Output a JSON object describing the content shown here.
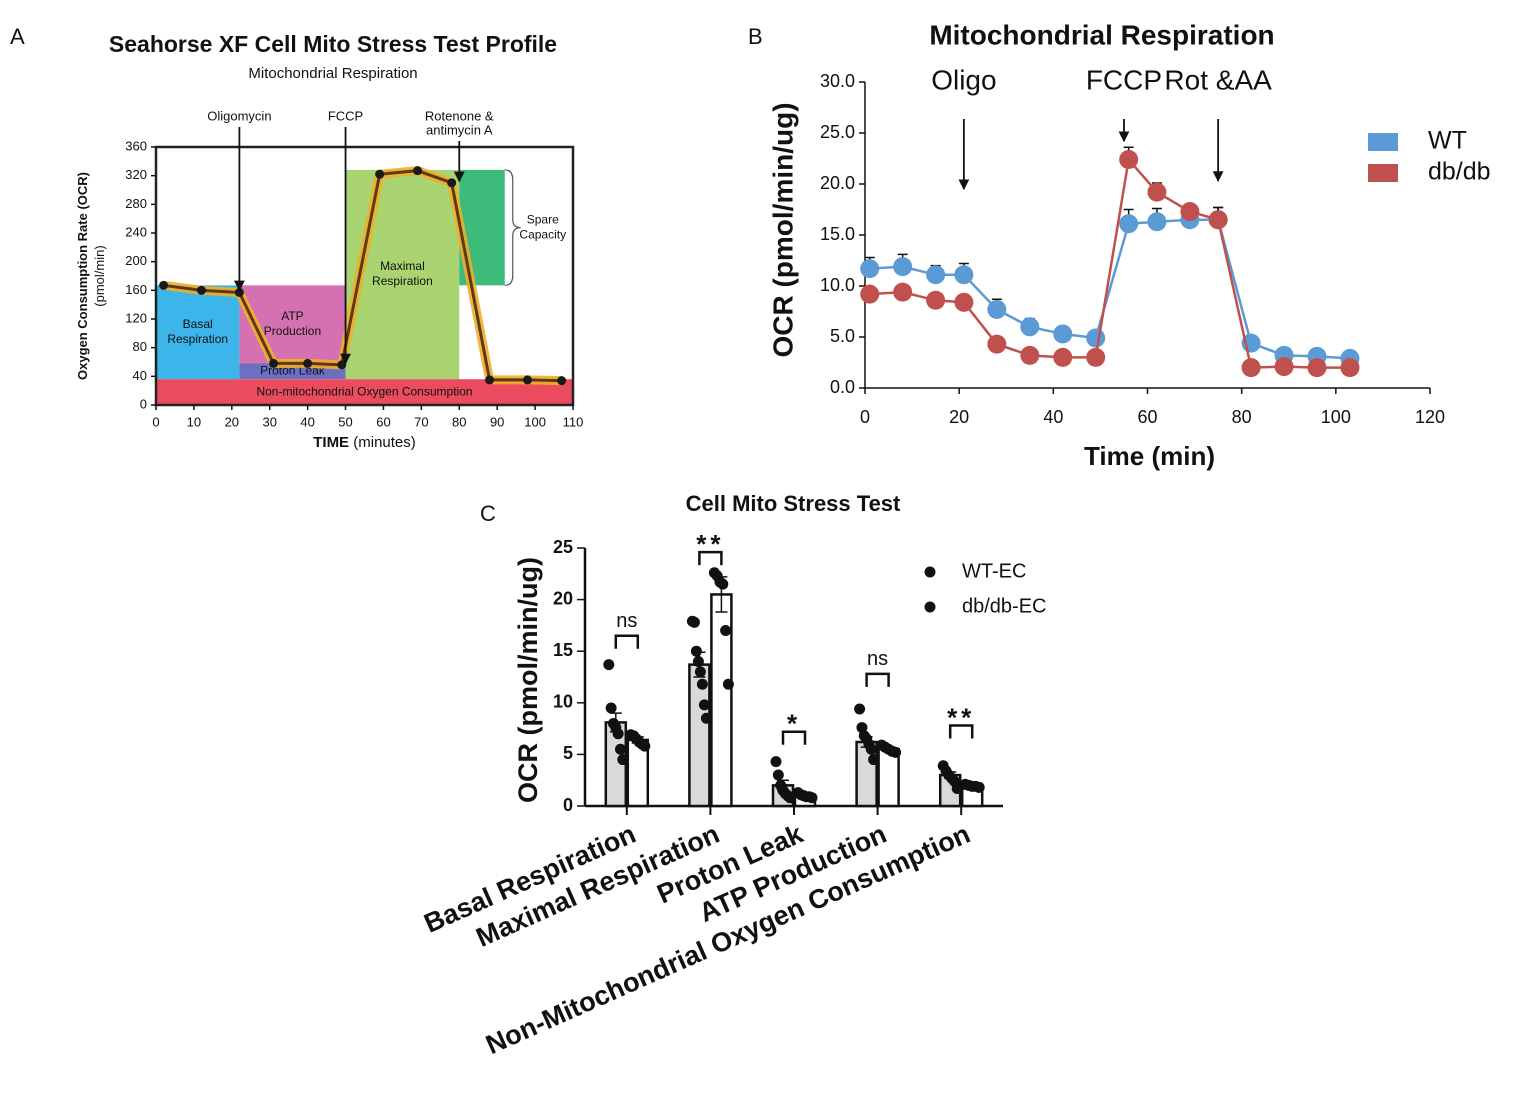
{
  "chart_data": [
    {
      "type": "line",
      "panel_label": "A",
      "title": "Seahorse XF Cell Mito Stress Test Profile",
      "subtitle": "Mitochondrial Respiration",
      "y_label": [
        "Oxygen Consumption Rate (OCR)",
        "(pmol/min)"
      ],
      "x_label": "TIME",
      "x_label_unit": "(minutes)",
      "x": [
        2,
        12,
        22,
        31,
        40,
        49,
        59,
        69,
        78,
        88,
        98,
        107
      ],
      "values": [
        167,
        160,
        157,
        58,
        58,
        56,
        322,
        327,
        310,
        35,
        35,
        34
      ],
      "color": "#5a3b12",
      "halo_color": "#f2ad2c",
      "marker_color": "#1a1a1a",
      "xlim": [
        0,
        110
      ],
      "xticks": [
        0,
        10,
        20,
        30,
        40,
        50,
        60,
        70,
        80,
        90,
        100,
        110
      ],
      "ylim": [
        0,
        360
      ],
      "yticks": [
        0,
        40,
        80,
        120,
        160,
        200,
        240,
        280,
        320,
        360
      ],
      "regions": [
        {
          "label": [
            "Basal",
            "Respiration"
          ],
          "x0": 0,
          "x1": 22,
          "y0": 36,
          "y1": 167,
          "color": "#3bb5ea"
        },
        {
          "label": [
            "ATP",
            "Production"
          ],
          "x0": 22,
          "x1": 50,
          "y0": 58,
          "y1": 167,
          "color": "#d570b3"
        },
        {
          "label": [
            "Proton Leak"
          ],
          "x0": 22,
          "x1": 50,
          "y0": 36,
          "y1": 58,
          "color": "#6c70c2"
        },
        {
          "label": [
            "Maximal",
            "Respiration"
          ],
          "x0": 50,
          "x1": 80,
          "y0": 36,
          "y1": 328,
          "color": "#a9d46f"
        },
        {
          "label": [
            "Spare",
            "Capacity"
          ],
          "x0": 80,
          "x1": 92,
          "y0": 167,
          "y1": 328,
          "color": "#3dbb7b"
        },
        {
          "label": [
            "Non-mitochondrial Oxygen Consumption"
          ],
          "x0": 0,
          "x1": 110,
          "y0": 0,
          "y1": 36,
          "color": "#ea4b5f"
        }
      ],
      "annotations": [
        {
          "text": [
            "Oligomycin"
          ],
          "x": 22,
          "y": 160
        },
        {
          "text": [
            "FCCP"
          ],
          "x": 50,
          "y": 58
        },
        {
          "text": [
            "Rotenone &",
            "antimycin A"
          ],
          "x": 80,
          "y": 312
        }
      ]
    },
    {
      "type": "line",
      "panel_label": "B",
      "title": "Mitochondrial Respiration",
      "y_label": "OCR (pmol/min/ug)",
      "x_label": "Time (min)",
      "x": [
        1,
        8,
        15,
        21,
        28,
        35,
        42,
        49,
        56,
        62,
        69,
        75,
        82,
        89,
        96,
        103
      ],
      "series": [
        {
          "name": "WT",
          "color": "#5b9bd5",
          "values": [
            11.7,
            11.9,
            11.1,
            11.1,
            7.7,
            6.0,
            5.3,
            4.9,
            16.1,
            16.3,
            16.5,
            16.5,
            4.4,
            3.2,
            3.1,
            2.9
          ],
          "errors": [
            1.1,
            1.2,
            0.9,
            1.1,
            1.0,
            0.8,
            0.5,
            0.5,
            1.4,
            1.3,
            1.2,
            1.2,
            0.4,
            0.3,
            0.3,
            0.3
          ]
        },
        {
          "name": "db/db",
          "color": "#c0504d",
          "values": [
            9.2,
            9.4,
            8.6,
            8.4,
            4.3,
            3.2,
            3.0,
            3.0,
            22.4,
            19.2,
            17.3,
            16.5,
            2.0,
            2.1,
            2.0,
            2.0
          ],
          "errors": [
            0.4,
            0.4,
            0.4,
            0.4,
            0.3,
            0.3,
            0.2,
            0.2,
            1.2,
            0.9,
            0.6,
            1.2,
            0.2,
            0.2,
            0.2,
            0.2
          ]
        }
      ],
      "xlim": [
        0,
        120
      ],
      "xticks": [
        0,
        20,
        40,
        60,
        80,
        100,
        120
      ],
      "ylim": [
        0,
        30
      ],
      "yticks": [
        {
          "value": 0,
          "label": "0.0"
        },
        {
          "value": 5,
          "label": "5.0"
        },
        {
          "value": 10,
          "label": "10.0"
        },
        {
          "value": 15,
          "label": "15.0"
        },
        {
          "value": 20,
          "label": "20.0"
        },
        {
          "value": 25,
          "label": "25.0"
        },
        {
          "value": 30,
          "label": "30.0"
        }
      ],
      "annotations": [
        {
          "text": [
            "Oligo"
          ],
          "x": 21,
          "y": 19.5
        },
        {
          "text": [
            "FCCP"
          ],
          "x": 55,
          "y": 24.2
        },
        {
          "text": [
            "Rot &AA"
          ],
          "x": 75,
          "y": 20.3
        }
      ],
      "legend": "upper right"
    },
    {
      "type": "bar",
      "panel_label": "C",
      "title": "Cell Mito Stress Test",
      "y_label": "OCR (pmol/min/ug)",
      "categories": [
        "Basal Respiration",
        "Maximal Respiration",
        "Proton Leak",
        "ATP Production",
        "Non-Mitochondrial Oxygen Consumption"
      ],
      "series": [
        {
          "name": "WT-EC",
          "color": "#d9d9d9",
          "values": [
            8.1,
            13.7,
            2.0,
            6.2,
            3.0
          ],
          "errors": [
            0.9,
            1.2,
            0.5,
            0.5,
            0.3
          ],
          "points": [
            [
              13.7,
              9.5,
              8.0,
              7.6,
              7.0,
              5.5,
              4.5
            ],
            [
              17.9,
              17.8,
              15.0,
              14.0,
              13.0,
              11.8,
              9.8,
              8.5
            ],
            [
              4.3,
              3.0,
              2.0,
              1.5,
              1.2,
              1.0,
              0.8
            ],
            [
              9.4,
              7.6,
              6.8,
              6.5,
              6.0,
              5.5,
              4.5
            ],
            [
              3.9,
              3.4,
              3.0,
              2.7,
              2.4,
              1.7
            ]
          ]
        },
        {
          "name": "db/db-EC",
          "color": "#ffffff",
          "values": [
            6.4,
            20.5,
            1.0,
            5.5,
            1.9
          ],
          "errors": [
            0.3,
            1.7,
            0.1,
            0.2,
            0.1
          ],
          "points": [
            [
              6.9,
              6.8,
              6.5,
              6.2,
              6.0,
              5.8
            ],
            [
              22.6,
              22.3,
              21.7,
              21.5,
              17.0,
              11.8
            ],
            [
              1.3,
              1.1,
              1.0,
              0.9,
              0.9,
              0.8
            ],
            [
              5.9,
              5.7,
              5.5,
              5.3,
              5.2
            ],
            [
              2.1,
              2.0,
              1.9,
              1.9,
              1.8
            ]
          ]
        }
      ],
      "ylim": [
        0,
        25
      ],
      "yticks": [
        0,
        5,
        10,
        15,
        20,
        25
      ],
      "significance": [
        {
          "label": "ns",
          "y": 16.5
        },
        {
          "label": "**",
          "y": 24.6
        },
        {
          "label": "*",
          "y": 7.2
        },
        {
          "label": "ns",
          "y": 12.8
        },
        {
          "label": "**",
          "y": 7.8
        }
      ],
      "legend": "upper right"
    }
  ]
}
